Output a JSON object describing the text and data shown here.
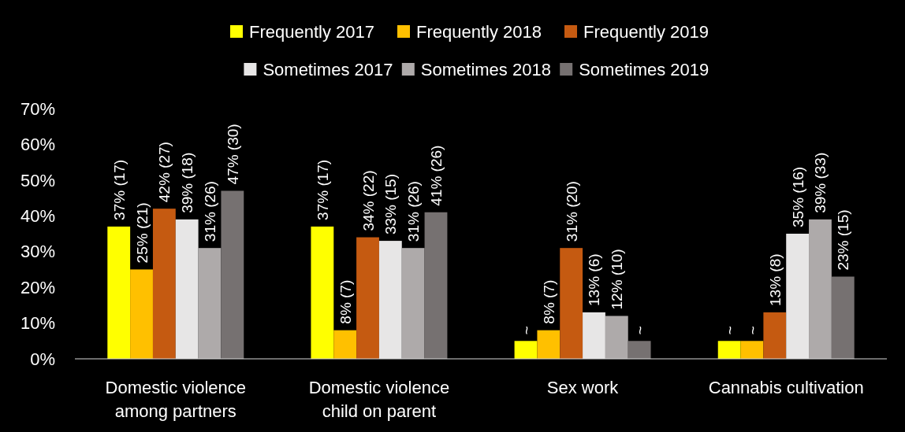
{
  "chart_data": {
    "type": "bar",
    "categories": [
      "Domestic violence among partners",
      "Domestic violence child on parent",
      "Sex work",
      "Cannabis cultivation"
    ],
    "series": [
      {
        "name": "Frequently 2017",
        "color": "#ffff00",
        "values": [
          37,
          37,
          5,
          5
        ],
        "value_labels": [
          "37% (17)",
          "37% (17)",
          "~",
          "~"
        ]
      },
      {
        "name": "Frequently 2018",
        "color": "#ffc000",
        "values": [
          25,
          8,
          8,
          5
        ],
        "value_labels": [
          "25% (21)",
          "8% (7)",
          "8% (7)",
          "~"
        ]
      },
      {
        "name": "Frequently 2019",
        "color": "#c55a11",
        "values": [
          42,
          34,
          31,
          13
        ],
        "value_labels": [
          "42% (27)",
          "34% (22)",
          "31% (20)",
          "13% (8)"
        ]
      },
      {
        "name": "Sometimes 2017",
        "color": "#e7e6e6",
        "values": [
          39,
          33,
          13,
          35
        ],
        "value_labels": [
          "39% (18)",
          "33% (15)",
          "13% (6)",
          "35% (16)"
        ]
      },
      {
        "name": "Sometimes 2018",
        "color": "#aeaaaa",
        "values": [
          31,
          31,
          12,
          39
        ],
        "value_labels": [
          "31% (26)",
          "31% (26)",
          "12% (10)",
          "39% (33)"
        ]
      },
      {
        "name": "Sometimes 2019",
        "color": "#767171",
        "values": [
          47,
          41,
          5,
          23
        ],
        "value_labels": [
          "47% (30)",
          "41% (26)",
          "~",
          "23% (15)"
        ]
      }
    ],
    "ylim": [
      0,
      70
    ],
    "yticks": [
      {
        "value": 0,
        "label": "0%"
      },
      {
        "value": 10,
        "label": "10%"
      },
      {
        "value": 20,
        "label": "20%"
      },
      {
        "value": 30,
        "label": "30%"
      },
      {
        "value": 40,
        "label": "40%"
      },
      {
        "value": 50,
        "label": "50%"
      },
      {
        "value": 60,
        "label": "60%"
      },
      {
        "value": 70,
        "label": "70%"
      }
    ],
    "grid": false,
    "legend": "top"
  }
}
